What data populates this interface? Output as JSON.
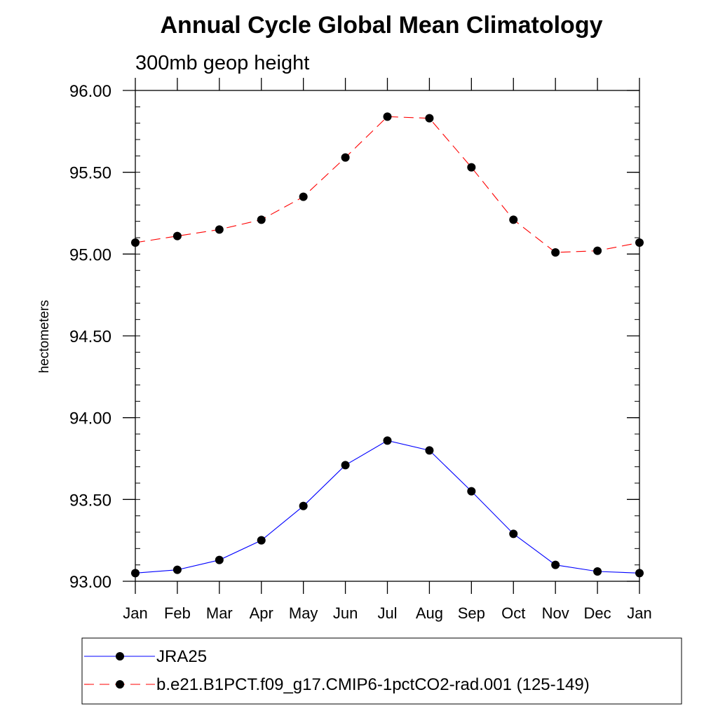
{
  "chart_data": {
    "type": "line",
    "title": "Annual Cycle Global Mean Climatology",
    "subtitle": "300mb geop height",
    "ylabel": "hectometers",
    "xlabel": "",
    "ylim": [
      93.0,
      96.0
    ],
    "categories": [
      "Jan",
      "Feb",
      "Mar",
      "Apr",
      "May",
      "Jun",
      "Jul",
      "Aug",
      "Sep",
      "Oct",
      "Nov",
      "Dec",
      "Jan"
    ],
    "y_ticks": [
      "93.00",
      "93.50",
      "94.00",
      "94.50",
      "95.00",
      "95.50",
      "96.00"
    ],
    "y_tick_values": [
      93.0,
      93.5,
      94.0,
      94.5,
      95.0,
      95.5,
      96.0
    ],
    "grid": false,
    "legend_position": "bottom",
    "series": [
      {
        "name": "JRA25",
        "color": "#0000ff",
        "dash": "solid",
        "values": [
          93.05,
          93.07,
          93.13,
          93.25,
          93.46,
          93.71,
          93.86,
          93.8,
          93.55,
          93.29,
          93.1,
          93.06,
          93.05
        ]
      },
      {
        "name": "b.e21.B1PCT.f09_g17.CMIP6-1pctCO2-rad.001 (125-149)",
        "color": "#ff0000",
        "dash": "dashed",
        "values": [
          95.07,
          95.11,
          95.15,
          95.21,
          95.35,
          95.59,
          95.84,
          95.83,
          95.53,
          95.21,
          95.01,
          95.02,
          95.07
        ]
      }
    ]
  }
}
